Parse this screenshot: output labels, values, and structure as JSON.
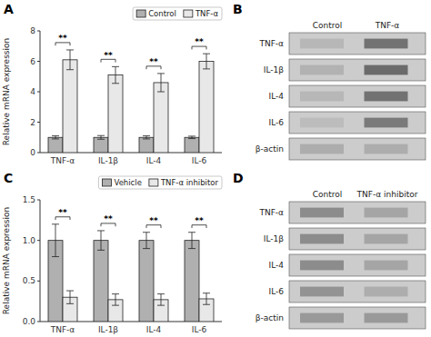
{
  "chart_data": [
    {
      "type": "bar",
      "title": "A",
      "categories": [
        "TNF-α",
        "IL-1β",
        "IL-4",
        "IL-6"
      ],
      "ylabel": "Relative mRNA expression",
      "ylim": [
        0,
        8
      ],
      "yticks": [
        0,
        2,
        4,
        6,
        8
      ],
      "legend": "upper right",
      "annotations": [
        "**",
        "**",
        "**",
        "**"
      ],
      "series": [
        {
          "name": "Control",
          "color": "#b0b0b0",
          "values": [
            1.0,
            1.0,
            1.0,
            1.0
          ],
          "errors": [
            0.1,
            0.12,
            0.1,
            0.08
          ]
        },
        {
          "name": "TNF-α",
          "color": "#e8e8e8",
          "values": [
            6.1,
            5.1,
            4.6,
            6.0
          ],
          "errors": [
            0.65,
            0.55,
            0.6,
            0.5
          ]
        }
      ]
    },
    {
      "type": "blot",
      "title": "B",
      "categories": [
        "TNF-α",
        "IL-1β",
        "IL-4",
        "IL-6",
        "β-actin"
      ],
      "series": [
        {
          "name": "Control",
          "values": [
            0.72,
            0.7,
            0.72,
            0.74,
            0.68
          ]
        },
        {
          "name": "TNF-α",
          "values": [
            0.45,
            0.42,
            0.45,
            0.48,
            0.68
          ]
        }
      ]
    },
    {
      "type": "bar",
      "title": "C",
      "categories": [
        "TNF-α",
        "IL-1β",
        "IL-4",
        "IL-6"
      ],
      "ylabel": "Relative mRNA expression",
      "ylim": [
        0,
        1.5
      ],
      "yticks": [
        {
          "value": 0,
          "label": "0.0"
        },
        0.5,
        {
          "value": 1,
          "label": "1.0"
        },
        1.5
      ],
      "legend": "upper right",
      "annotations": [
        "**",
        "**",
        "**",
        "**"
      ],
      "series": [
        {
          "name": "Vehicle",
          "color": "#b0b0b0",
          "values": [
            1.0,
            1.0,
            1.0,
            1.0
          ],
          "errors": [
            0.2,
            0.12,
            0.1,
            0.1
          ]
        },
        {
          "name": "TNF-α inhibitor",
          "color": "#e8e8e8",
          "values": [
            0.3,
            0.27,
            0.27,
            0.28
          ],
          "errors": [
            0.08,
            0.07,
            0.07,
            0.07
          ]
        }
      ]
    },
    {
      "type": "blot",
      "title": "D",
      "categories": [
        "TNF-α",
        "IL-1β",
        "IL-4",
        "IL-6",
        "β-actin"
      ],
      "series": [
        {
          "name": "Control",
          "values": [
            0.55,
            0.55,
            0.55,
            0.58,
            0.6
          ]
        },
        {
          "name": "TNF-α inhibitor",
          "values": [
            0.65,
            0.65,
            0.65,
            0.68,
            0.6
          ]
        }
      ]
    }
  ]
}
